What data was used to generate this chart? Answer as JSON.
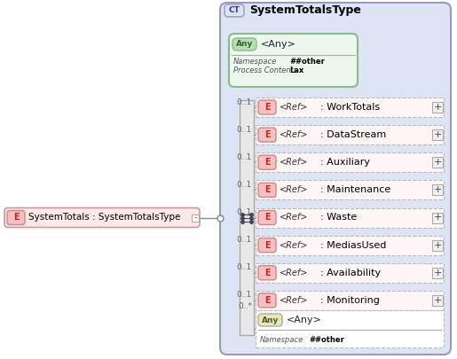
{
  "title": "SystemTotalsType",
  "ct_label": "CT",
  "main_element": "SystemTotals : SystemTotalsType",
  "any_top_text": "<Any>",
  "any_top_namespace": "##other",
  "any_top_process": "Lax",
  "sequence_items": [
    {
      "label": "E",
      "ref": "<Ref>",
      "name": ": WorkTotals",
      "mult": "0..1"
    },
    {
      "label": "E",
      "ref": "<Ref>",
      "name": ": DataStream",
      "mult": "0..1"
    },
    {
      "label": "E",
      "ref": "<Ref>",
      "name": ": Auxiliary",
      "mult": "0..1"
    },
    {
      "label": "E",
      "ref": "<Ref>",
      "name": ": Maintenance",
      "mult": "0..1"
    },
    {
      "label": "E",
      "ref": "<Ref>",
      "name": ": Waste",
      "mult": "0..1"
    },
    {
      "label": "E",
      "ref": "<Ref>",
      "name": ": MediasUsed",
      "mult": "0..1"
    },
    {
      "label": "E",
      "ref": "<Ref>",
      "name": ": Availability",
      "mult": "0..1"
    },
    {
      "label": "E",
      "ref": "<Ref>",
      "name": ": Monitoring",
      "mult": "0..1"
    }
  ],
  "any_bottom_text": "<Any>",
  "any_bottom_namespace": "##other",
  "any_bottom_mult": "0..*",
  "bg_color": "#dde5f5",
  "element_bg": "#fce8e8",
  "element_border": "#cc9999",
  "any_top_bg": "#edf7ed",
  "any_top_border": "#88bb88",
  "seq_bar_color": "#e8e8e8",
  "seq_bar_border": "#aaaaaa",
  "main_element_bg": "#fce8e8",
  "main_element_border": "#cc9999",
  "ct_border": "#9999bb",
  "title_color": "#000000",
  "text_color": "#000000",
  "mult_color": "#666666",
  "ref_color": "#333333",
  "badge_e_bg": "#f5c0c0",
  "badge_e_border": "#cc8888",
  "badge_e_text": "#cc2222",
  "badge_ct_bg": "#dde5f5",
  "badge_ct_text": "#333399",
  "badge_any_top_bg": "#b8e0b8",
  "badge_any_top_border": "#88bb88",
  "badge_any_top_text": "#336633",
  "badge_any_bot_bg": "#e8e8b0",
  "badge_any_bot_border": "#aaaaaa",
  "badge_any_bot_text": "#555533",
  "plus_bg": "#f0f0f0",
  "plus_border": "#aaaaaa",
  "connector_color": "#888888",
  "row_box_bg": "#fef5f5",
  "row_box_border": "#bbbbbb"
}
